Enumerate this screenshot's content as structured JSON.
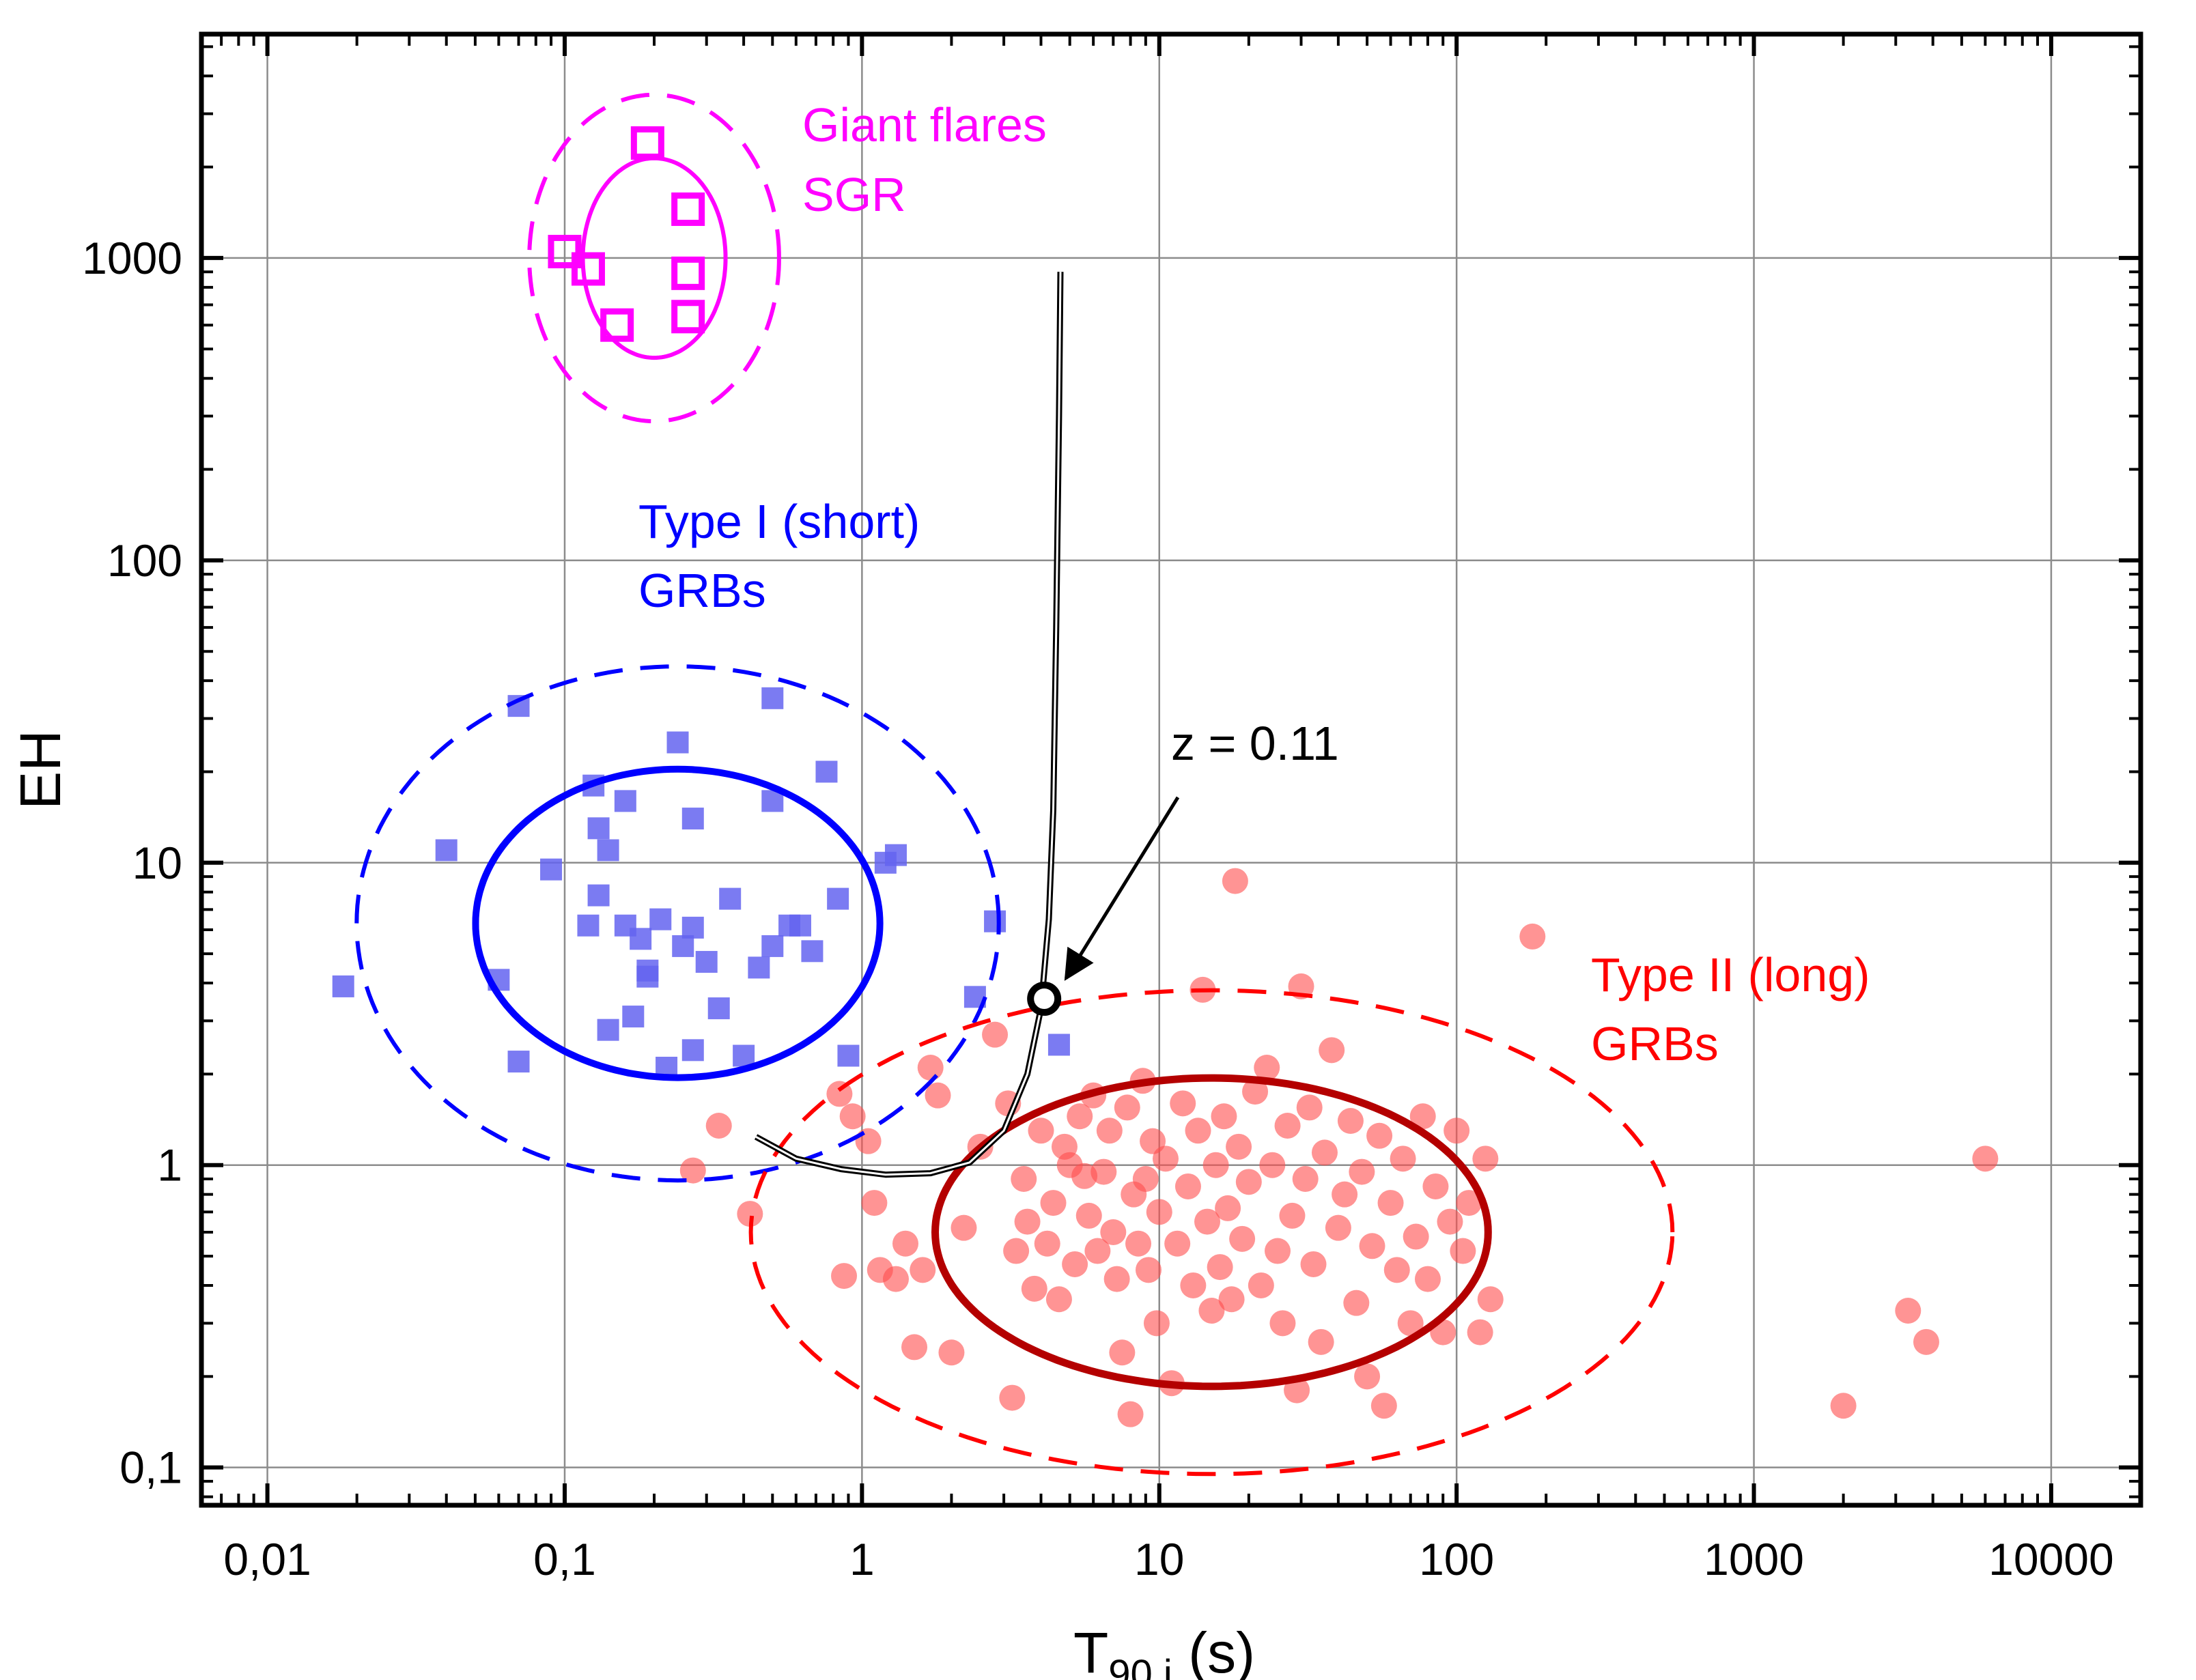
{
  "chart_data": {
    "type": "scatter",
    "x_scale": "log",
    "y_scale": "log",
    "xlim": [
      0.006,
      20000
    ],
    "ylim": [
      0.075,
      5500
    ],
    "grid": true,
    "xlabel": {
      "main": "T",
      "sub": "90,i",
      "unit": " (s)"
    },
    "ylabel": "EH",
    "x_ticks": [
      {
        "value": 0.01,
        "label": "0,01"
      },
      {
        "value": 0.1,
        "label": "0,1"
      },
      {
        "value": 1,
        "label": "1"
      },
      {
        "value": 10,
        "label": "10"
      },
      {
        "value": 100,
        "label": "100"
      },
      {
        "value": 1000,
        "label": "1000"
      },
      {
        "value": 10000,
        "label": "10000"
      }
    ],
    "y_ticks": [
      {
        "value": 0.1,
        "label": "0,1"
      },
      {
        "value": 1,
        "label": "1"
      },
      {
        "value": 10,
        "label": "10"
      },
      {
        "value": 100,
        "label": "100"
      },
      {
        "value": 1000,
        "label": "1000"
      }
    ],
    "colors": {
      "sgr": "#ff00ff",
      "short": "#0000ff",
      "short_points": "#6464f0",
      "long": "#ff0000",
      "long_points": "#ff4d4d",
      "long_solid_ellipse": "#b40000",
      "track": "#000000"
    },
    "annotations": {
      "sgr": [
        "Giant flares",
        "SGR"
      ],
      "short": [
        "Type I (short)",
        "GRBs"
      ],
      "long": [
        "Type II (long)",
        "GRBs"
      ],
      "redshift": "z = 0.11"
    },
    "series": [
      {
        "id": "sgr",
        "marker": "open-square",
        "points": [
          [
            0.1,
            1050
          ],
          [
            0.12,
            920
          ],
          [
            0.19,
            2400
          ],
          [
            0.26,
            1450
          ],
          [
            0.26,
            890
          ],
          [
            0.15,
            600
          ],
          [
            0.26,
            640
          ]
        ]
      },
      {
        "id": "short",
        "marker": "square",
        "points": [
          [
            0.018,
            3.9
          ],
          [
            0.04,
            11
          ],
          [
            0.06,
            4.1
          ],
          [
            0.07,
            33
          ],
          [
            0.07,
            2.2
          ],
          [
            0.09,
            9.5
          ],
          [
            0.12,
            6.2
          ],
          [
            0.125,
            18
          ],
          [
            0.13,
            7.8
          ],
          [
            0.13,
            13
          ],
          [
            0.14,
            11
          ],
          [
            0.14,
            2.8
          ],
          [
            0.16,
            16
          ],
          [
            0.16,
            6.2
          ],
          [
            0.17,
            3.1
          ],
          [
            0.18,
            5.6
          ],
          [
            0.19,
            4.4
          ],
          [
            0.19,
            4.2
          ],
          [
            0.21,
            6.5
          ],
          [
            0.22,
            2.1
          ],
          [
            0.24,
            25
          ],
          [
            0.25,
            5.3
          ],
          [
            0.27,
            14
          ],
          [
            0.27,
            6.1
          ],
          [
            0.27,
            2.4
          ],
          [
            0.3,
            4.7
          ],
          [
            0.33,
            3.3
          ],
          [
            0.36,
            7.6
          ],
          [
            0.4,
            2.3
          ],
          [
            0.45,
            4.5
          ],
          [
            0.5,
            5.3
          ],
          [
            0.5,
            35
          ],
          [
            0.5,
            16
          ],
          [
            0.57,
            6.2
          ],
          [
            0.62,
            6.2
          ],
          [
            0.68,
            5.1
          ],
          [
            0.76,
            20
          ],
          [
            0.83,
            7.6
          ],
          [
            0.9,
            2.3
          ],
          [
            1.2,
            10
          ],
          [
            1.3,
            10.6
          ],
          [
            2.4,
            3.6
          ],
          [
            2.8,
            6.4
          ],
          [
            4.6,
            2.5
          ]
        ]
      },
      {
        "id": "long",
        "marker": "circle",
        "points": [
          [
            0.27,
            0.96
          ],
          [
            0.33,
            1.35
          ],
          [
            0.42,
            0.69
          ],
          [
            0.84,
            1.72
          ],
          [
            0.87,
            0.43
          ],
          [
            0.93,
            1.45
          ],
          [
            1.05,
            1.2
          ],
          [
            1.1,
            0.75
          ],
          [
            1.15,
            0.45
          ],
          [
            1.3,
            0.42
          ],
          [
            1.4,
            0.55
          ],
          [
            1.5,
            0.25
          ],
          [
            1.6,
            0.45
          ],
          [
            1.7,
            2.1
          ],
          [
            1.8,
            1.7
          ],
          [
            2.0,
            0.24
          ],
          [
            2.2,
            0.62
          ],
          [
            2.5,
            1.15
          ],
          [
            2.8,
            2.7
          ],
          [
            3.1,
            1.6
          ],
          [
            3.2,
            0.17
          ],
          [
            3.3,
            0.52
          ],
          [
            3.5,
            0.9
          ],
          [
            3.6,
            0.65
          ],
          [
            3.8,
            0.39
          ],
          [
            4.0,
            1.3
          ],
          [
            4.2,
            0.55
          ],
          [
            4.4,
            0.75
          ],
          [
            4.6,
            0.36
          ],
          [
            4.8,
            1.15
          ],
          [
            5.0,
            1.0
          ],
          [
            5.2,
            0.47
          ],
          [
            5.4,
            1.45
          ],
          [
            5.6,
            0.92
          ],
          [
            5.8,
            0.68
          ],
          [
            6.0,
            1.7
          ],
          [
            6.2,
            0.52
          ],
          [
            6.5,
            0.95
          ],
          [
            6.8,
            1.3
          ],
          [
            7.0,
            0.6
          ],
          [
            7.2,
            0.42
          ],
          [
            7.5,
            0.24
          ],
          [
            7.8,
            1.55
          ],
          [
            8.0,
            0.15
          ],
          [
            8.2,
            0.8
          ],
          [
            8.5,
            0.55
          ],
          [
            8.8,
            1.9
          ],
          [
            9.0,
            0.9
          ],
          [
            9.2,
            0.45
          ],
          [
            9.5,
            1.2
          ],
          [
            9.8,
            0.3
          ],
          [
            10.0,
            0.7
          ],
          [
            10.5,
            1.05
          ],
          [
            11.0,
            0.19
          ],
          [
            11.5,
            0.55
          ],
          [
            12.0,
            1.6
          ],
          [
            12.5,
            0.85
          ],
          [
            13.0,
            0.4
          ],
          [
            13.5,
            1.3
          ],
          [
            14.0,
            3.8
          ],
          [
            14.5,
            0.65
          ],
          [
            15.0,
            0.33
          ],
          [
            15.5,
            1.0
          ],
          [
            16.0,
            0.46
          ],
          [
            16.5,
            1.45
          ],
          [
            17.0,
            0.72
          ],
          [
            17.5,
            0.36
          ],
          [
            18.0,
            8.7
          ],
          [
            18.5,
            1.15
          ],
          [
            19.0,
            0.57
          ],
          [
            20.0,
            0.88
          ],
          [
            21.0,
            1.75
          ],
          [
            22.0,
            0.4
          ],
          [
            23.0,
            2.1
          ],
          [
            24.0,
            1.0
          ],
          [
            25.0,
            0.52
          ],
          [
            26.0,
            0.3
          ],
          [
            27.0,
            1.35
          ],
          [
            28.0,
            0.68
          ],
          [
            29.0,
            0.18
          ],
          [
            30.0,
            3.9
          ],
          [
            31.0,
            0.9
          ],
          [
            32.0,
            1.55
          ],
          [
            33.0,
            0.47
          ],
          [
            35.0,
            0.26
          ],
          [
            36.0,
            1.1
          ],
          [
            38.0,
            2.4
          ],
          [
            40.0,
            0.62
          ],
          [
            42.0,
            0.8
          ],
          [
            44.0,
            1.4
          ],
          [
            46.0,
            0.35
          ],
          [
            48.0,
            0.95
          ],
          [
            50.0,
            0.2
          ],
          [
            52.0,
            0.54
          ],
          [
            55.0,
            1.25
          ],
          [
            57.0,
            0.16
          ],
          [
            60.0,
            0.75
          ],
          [
            63.0,
            0.45
          ],
          [
            66.0,
            1.05
          ],
          [
            70.0,
            0.3
          ],
          [
            73.0,
            0.58
          ],
          [
            77.0,
            1.45
          ],
          [
            80.0,
            0.42
          ],
          [
            85.0,
            0.85
          ],
          [
            90.0,
            0.28
          ],
          [
            95.0,
            0.65
          ],
          [
            100.0,
            1.3
          ],
          [
            105.0,
            0.52
          ],
          [
            110.0,
            0.75
          ],
          [
            120.0,
            0.28
          ],
          [
            125.0,
            1.05
          ],
          [
            130.0,
            0.36
          ],
          [
            180.0,
            5.7
          ],
          [
            2000.0,
            0.16
          ],
          [
            3300.0,
            0.33
          ],
          [
            3800.0,
            0.26
          ],
          [
            6000.0,
            1.05
          ]
        ]
      }
    ],
    "ellipses": [
      {
        "id": "sgr-inner",
        "style": "solid",
        "cx": 0.2,
        "cy": 1000,
        "rx_dex": 0.24,
        "ry_dex": 0.33
      },
      {
        "id": "sgr-outer",
        "style": "dashed",
        "cx": 0.2,
        "cy": 1000,
        "rx_dex": 0.42,
        "ry_dex": 0.54
      },
      {
        "id": "short-inner",
        "style": "solid",
        "cx": 0.24,
        "cy": 6.3,
        "rx_dex": 0.68,
        "ry_dex": 0.51
      },
      {
        "id": "short-outer",
        "style": "dashed",
        "cx": 0.24,
        "cy": 6.3,
        "rx_dex": 1.08,
        "ry_dex": 0.85
      },
      {
        "id": "long-inner",
        "style": "solid",
        "cx": 15,
        "cy": 0.6,
        "rx_dex": 0.93,
        "ry_dex": 0.51
      },
      {
        "id": "long-outer",
        "style": "dashed",
        "cx": 15,
        "cy": 0.6,
        "rx_dex": 1.55,
        "ry_dex": 0.8
      }
    ],
    "track": [
      [
        0.44,
        1.24
      ],
      [
        0.6,
        1.05
      ],
      [
        0.85,
        0.97
      ],
      [
        1.2,
        0.93
      ],
      [
        1.7,
        0.94
      ],
      [
        2.3,
        1.02
      ],
      [
        3.0,
        1.3
      ],
      [
        3.6,
        2.0
      ],
      [
        4.0,
        3.3
      ],
      [
        4.25,
        6.5
      ],
      [
        4.4,
        15
      ],
      [
        4.5,
        60
      ],
      [
        4.6,
        300
      ],
      [
        4.65,
        900
      ]
    ],
    "redshift_marker": {
      "x": 4.1,
      "y": 3.55
    }
  }
}
